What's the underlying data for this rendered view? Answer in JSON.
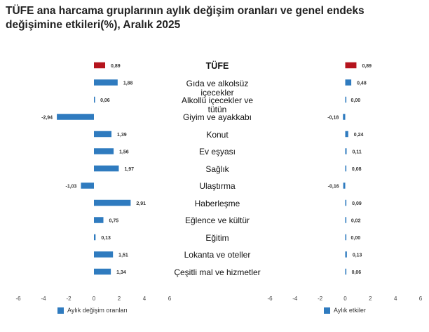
{
  "title": "TÜFE ana harcama gruplarının aylık değişim oranları ve genel endeks değişimine etkileri(%), Aralık 2025",
  "colors": {
    "highlight": "#b5141d",
    "bar": "#2f7bbf"
  },
  "chart_data": [
    {
      "type": "bar",
      "orientation": "horizontal",
      "categories": [
        "TÜFE",
        "Gıda ve alkolsüz içecekler",
        "Alkollü içecekler ve tütün",
        "Giyim ve ayakkabı",
        "Konut",
        "Ev eşyası",
        "Sağlık",
        "Ulaştırma",
        "Haberleşme",
        "Eğlence ve kültür",
        "Eğitim",
        "Lokanta ve oteller",
        "Çeşitli mal ve hizmetler"
      ],
      "values": [
        0.89,
        1.88,
        0.06,
        -2.94,
        1.39,
        1.56,
        1.97,
        -1.03,
        2.91,
        0.75,
        0.13,
        1.51,
        1.34
      ],
      "labels": [
        "0,89",
        "1,88",
        "0,06",
        "-2,94",
        "1,39",
        "1,56",
        "1,97",
        "-1,03",
        "2,91",
        "0,75",
        "0,13",
        "1,51",
        "1,34"
      ],
      "xlim": [
        -6,
        6
      ],
      "xticks": [
        "-6",
        "-4",
        "-2",
        "0",
        "2",
        "4",
        "6"
      ],
      "legend": "Aylık değişim oranları"
    },
    {
      "type": "bar",
      "orientation": "horizontal",
      "categories": [
        "TÜFE",
        "Gıda ve alkolsüz içecekler",
        "Alkollü içecekler ve tütün",
        "Giyim ve ayakkabı",
        "Konut",
        "Ev eşyası",
        "Sağlık",
        "Ulaştırma",
        "Haberleşme",
        "Eğlence ve kültür",
        "Eğitim",
        "Lokanta ve oteller",
        "Çeşitli mal ve hizmetler"
      ],
      "values": [
        0.89,
        0.48,
        0.0,
        -0.18,
        0.24,
        0.11,
        0.08,
        -0.16,
        0.09,
        0.02,
        0.0,
        0.13,
        0.06
      ],
      "labels": [
        "0,89",
        "0,48",
        "0,00",
        "-0,18",
        "0,24",
        "0,11",
        "0,08",
        "-0,16",
        "0,09",
        "0,02",
        "0,00",
        "0,13",
        "0,06"
      ],
      "xlim": [
        -6,
        6
      ],
      "xticks": [
        "-6",
        "-4",
        "-2",
        "0",
        "2",
        "4",
        "6"
      ],
      "legend": "Aylık etkiler"
    }
  ],
  "category_labels": [
    [
      "TÜFE"
    ],
    [
      "Gıda ve alkolsüz",
      "içecekler"
    ],
    [
      "Alkollü içecekler ve",
      "tütün"
    ],
    [
      "Giyim ve ayakkabı"
    ],
    [
      "Konut"
    ],
    [
      "Ev eşyası"
    ],
    [
      "Sağlık"
    ],
    [
      "Ulaştırma"
    ],
    [
      "Haberleşme"
    ],
    [
      "Eğlence ve kültür"
    ],
    [
      "Eğitim"
    ],
    [
      "Lokanta ve oteller"
    ],
    [
      "Çeşitli mal ve hizmetler"
    ]
  ]
}
